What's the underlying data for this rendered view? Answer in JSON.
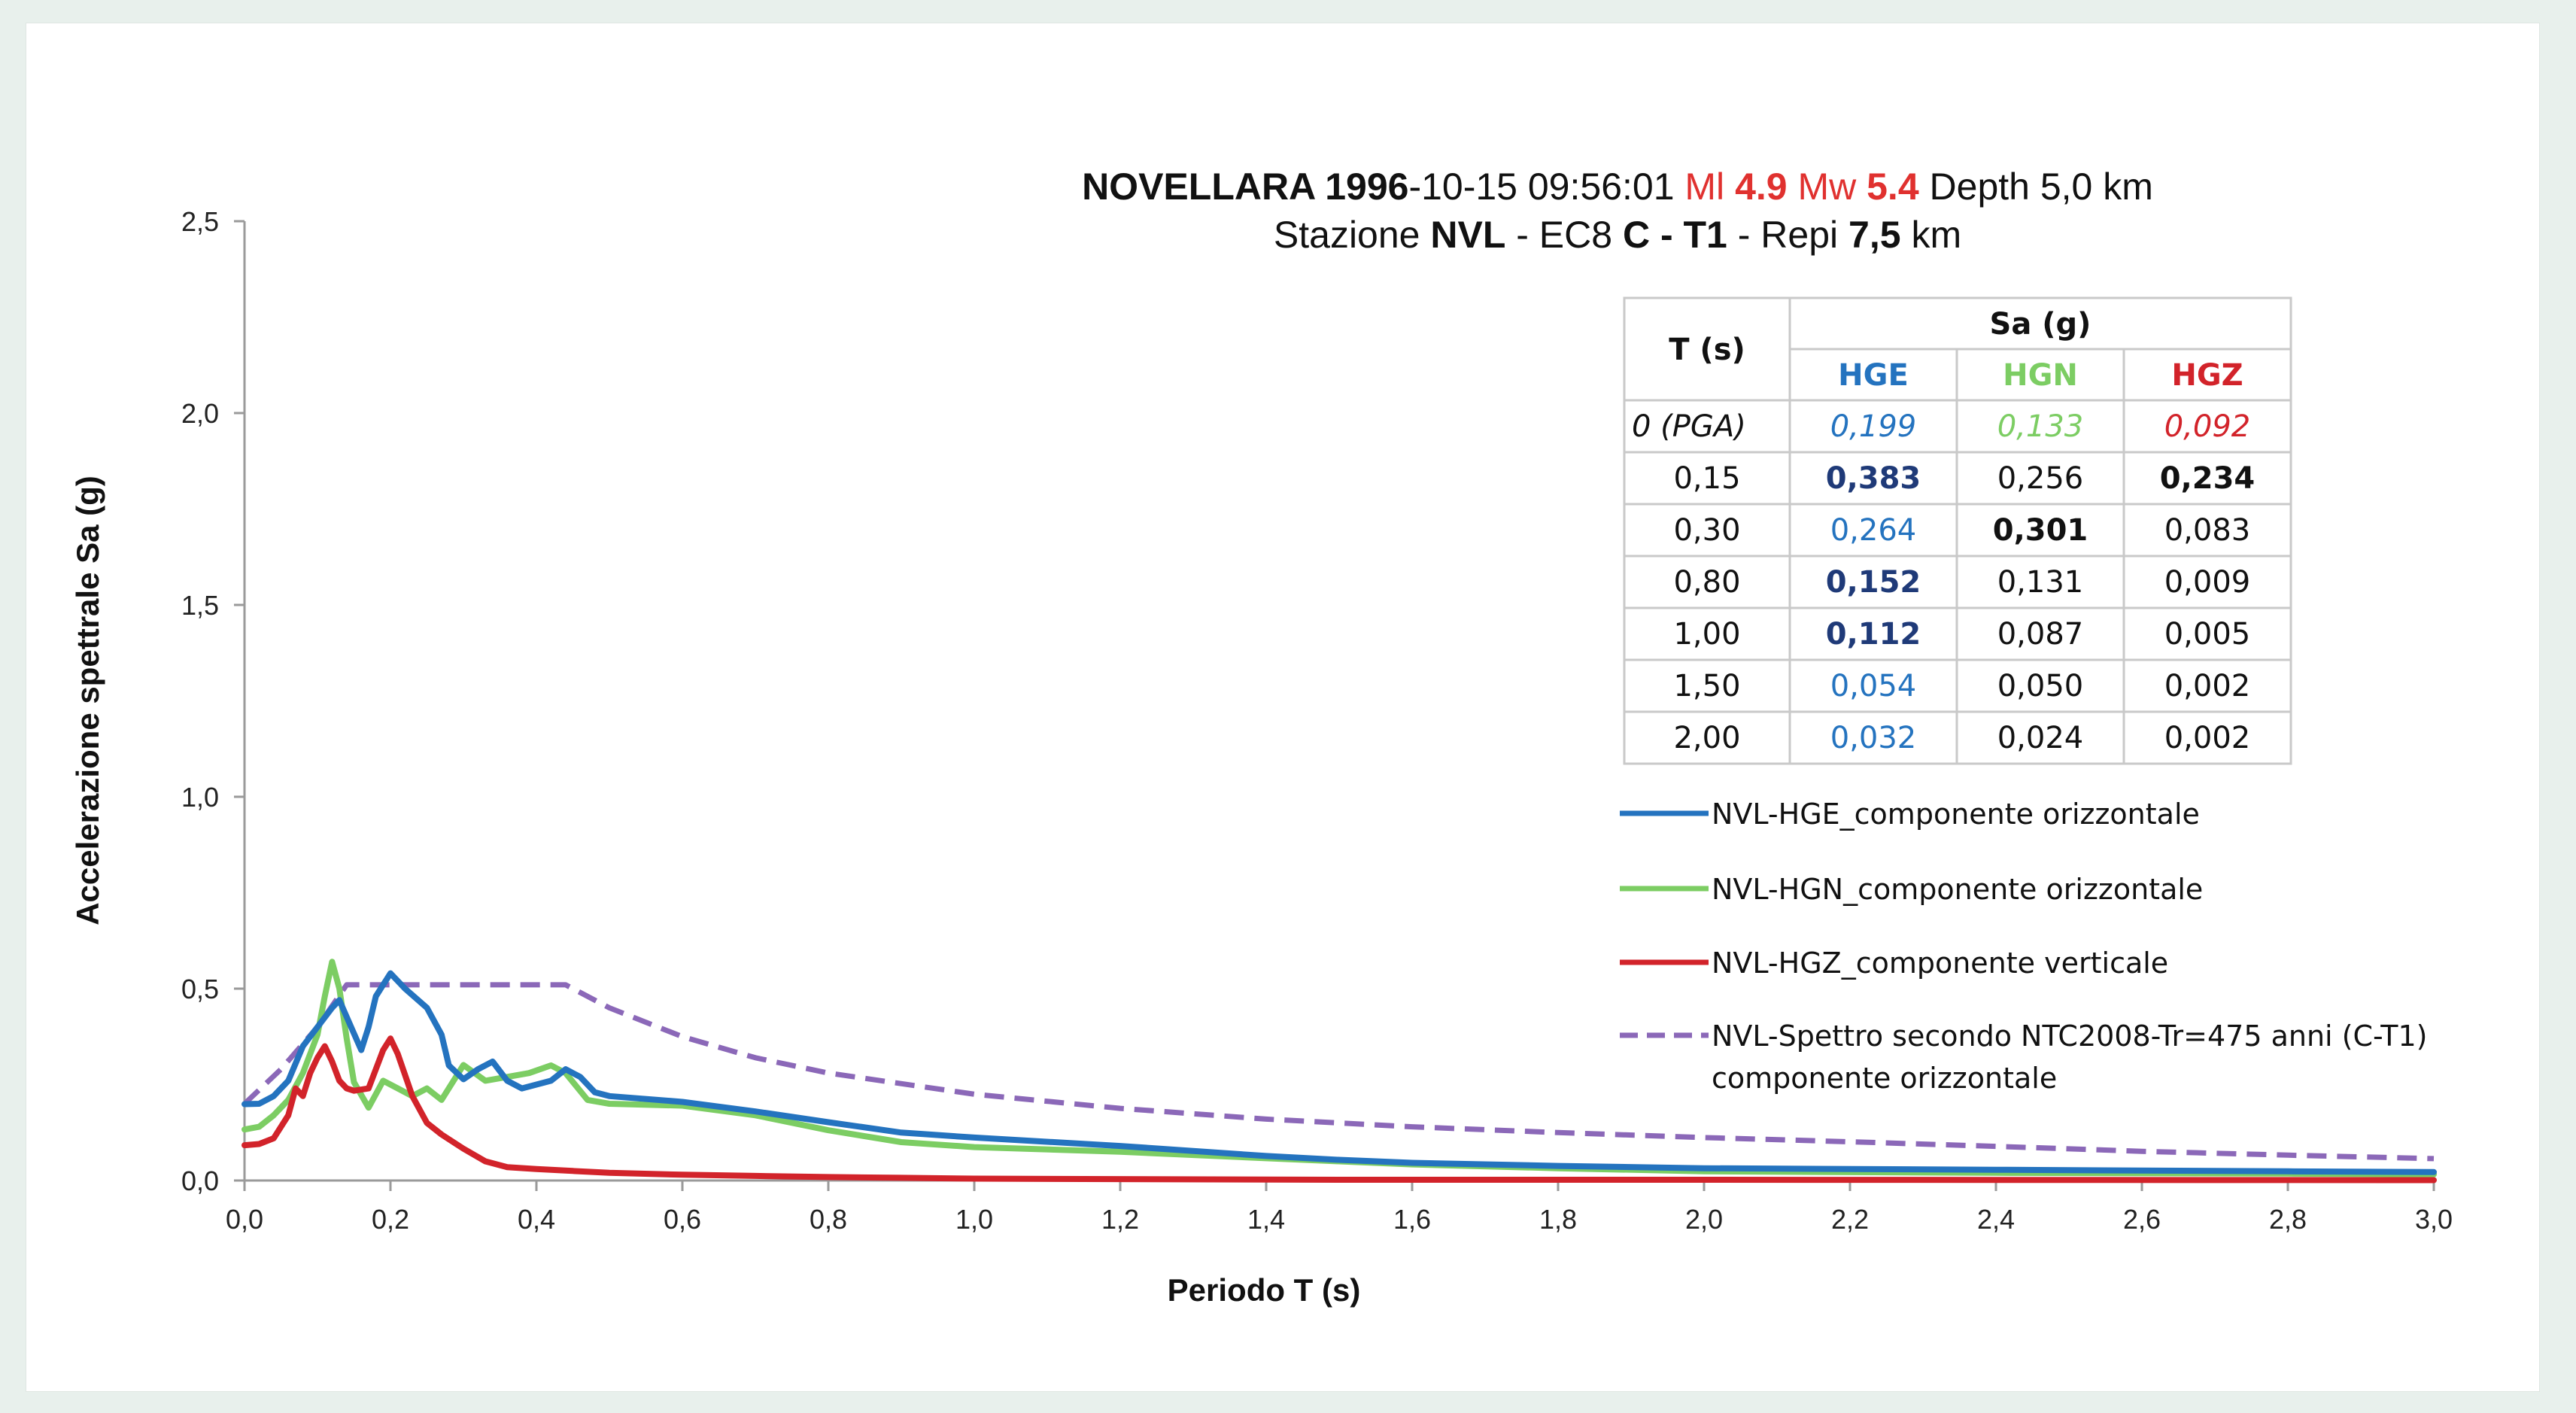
{
  "colors": {
    "HGE": "#2473bf",
    "HGN": "#7ccd63",
    "HGZ": "#d2232a",
    "spectrum": "#8b68b8",
    "highlight": "#1f3a78",
    "title_red": "#e0312f",
    "grid_border": "#c9c9c9",
    "axis": "#9a9a9a"
  },
  "chart_data": {
    "type": "line",
    "title": {
      "line1": [
        {
          "text": "NOVELLARA 1996",
          "bold": true,
          "color": "#111111"
        },
        {
          "text": "-10-15 09:56:01 ",
          "bold": false,
          "color": "#111111"
        },
        {
          "text": "Ml ",
          "bold": false,
          "color": "#e0312f"
        },
        {
          "text": "4.9",
          "bold": true,
          "color": "#e0312f"
        },
        {
          "text": " Mw ",
          "bold": false,
          "color": "#e0312f"
        },
        {
          "text": "5.4",
          "bold": true,
          "color": "#e0312f"
        },
        {
          "text": " Depth 5,0 km",
          "bold": false,
          "color": "#111111"
        }
      ],
      "line2": [
        {
          "text": "Stazione ",
          "bold": false
        },
        {
          "text": "NVL",
          "bold": true
        },
        {
          "text": " - EC8 ",
          "bold": false
        },
        {
          "text": "C - T1",
          "bold": true
        },
        {
          "text": " - Repi ",
          "bold": false
        },
        {
          "text": "7,5",
          "bold": true
        },
        {
          "text": " km",
          "bold": false
        }
      ]
    },
    "xlabel": "Periodo T (s)",
    "ylabel": "Accelerazione spettrale Sa (g)",
    "xlim": [
      0,
      3.0
    ],
    "ylim": [
      0,
      2.5
    ],
    "x_ticks": [
      "0,0",
      "0,2",
      "0,4",
      "0,6",
      "0,8",
      "1,0",
      "1,2",
      "1,4",
      "1,6",
      "1,8",
      "2,0",
      "2,2",
      "2,4",
      "2,6",
      "2,8",
      "3,0"
    ],
    "x_tick_values": [
      0,
      0.2,
      0.4,
      0.6,
      0.8,
      1.0,
      1.2,
      1.4,
      1.6,
      1.8,
      2.0,
      2.2,
      2.4,
      2.6,
      2.8,
      3.0
    ],
    "y_ticks": [
      "0,0",
      "0,5",
      "1,0",
      "1,5",
      "2,0",
      "2,5"
    ],
    "y_tick_values": [
      0,
      0.5,
      1.0,
      1.5,
      2.0,
      2.5
    ],
    "grid": false,
    "legend_position": "right",
    "series": [
      {
        "key": "HGE",
        "name": "NVL-HGE_componente orizzontale",
        "color_key": "HGE",
        "dashed": false,
        "points": [
          [
            0,
            0.199
          ],
          [
            0.02,
            0.2
          ],
          [
            0.04,
            0.22
          ],
          [
            0.06,
            0.26
          ],
          [
            0.08,
            0.35
          ],
          [
            0.1,
            0.4
          ],
          [
            0.12,
            0.45
          ],
          [
            0.13,
            0.47
          ],
          [
            0.15,
            0.383
          ],
          [
            0.16,
            0.34
          ],
          [
            0.17,
            0.4
          ],
          [
            0.18,
            0.48
          ],
          [
            0.2,
            0.54
          ],
          [
            0.22,
            0.5
          ],
          [
            0.25,
            0.45
          ],
          [
            0.27,
            0.38
          ],
          [
            0.28,
            0.3
          ],
          [
            0.3,
            0.264
          ],
          [
            0.32,
            0.29
          ],
          [
            0.34,
            0.31
          ],
          [
            0.36,
            0.26
          ],
          [
            0.38,
            0.24
          ],
          [
            0.4,
            0.25
          ],
          [
            0.42,
            0.26
          ],
          [
            0.44,
            0.29
          ],
          [
            0.46,
            0.27
          ],
          [
            0.48,
            0.23
          ],
          [
            0.5,
            0.22
          ],
          [
            0.6,
            0.205
          ],
          [
            0.7,
            0.18
          ],
          [
            0.8,
            0.152
          ],
          [
            0.9,
            0.125
          ],
          [
            1.0,
            0.112
          ],
          [
            1.2,
            0.09
          ],
          [
            1.4,
            0.064
          ],
          [
            1.5,
            0.054
          ],
          [
            1.6,
            0.046
          ],
          [
            1.8,
            0.038
          ],
          [
            2.0,
            0.032
          ],
          [
            2.4,
            0.028
          ],
          [
            2.8,
            0.024
          ],
          [
            3.0,
            0.022
          ]
        ]
      },
      {
        "key": "HGN",
        "name": "NVL-HGN_componente orizzontale",
        "color_key": "HGN",
        "dashed": false,
        "points": [
          [
            0,
            0.133
          ],
          [
            0.02,
            0.14
          ],
          [
            0.04,
            0.17
          ],
          [
            0.06,
            0.21
          ],
          [
            0.08,
            0.28
          ],
          [
            0.1,
            0.38
          ],
          [
            0.11,
            0.48
          ],
          [
            0.12,
            0.57
          ],
          [
            0.13,
            0.5
          ],
          [
            0.14,
            0.37
          ],
          [
            0.15,
            0.256
          ],
          [
            0.17,
            0.19
          ],
          [
            0.19,
            0.26
          ],
          [
            0.21,
            0.24
          ],
          [
            0.23,
            0.22
          ],
          [
            0.25,
            0.24
          ],
          [
            0.27,
            0.21
          ],
          [
            0.3,
            0.301
          ],
          [
            0.33,
            0.26
          ],
          [
            0.36,
            0.27
          ],
          [
            0.39,
            0.28
          ],
          [
            0.42,
            0.3
          ],
          [
            0.44,
            0.28
          ],
          [
            0.47,
            0.21
          ],
          [
            0.5,
            0.2
          ],
          [
            0.6,
            0.195
          ],
          [
            0.7,
            0.17
          ],
          [
            0.8,
            0.131
          ],
          [
            0.9,
            0.1
          ],
          [
            1.0,
            0.087
          ],
          [
            1.2,
            0.075
          ],
          [
            1.4,
            0.058
          ],
          [
            1.5,
            0.05
          ],
          [
            1.6,
            0.042
          ],
          [
            1.8,
            0.032
          ],
          [
            2.0,
            0.024
          ],
          [
            2.4,
            0.02
          ],
          [
            2.8,
            0.018
          ],
          [
            3.0,
            0.016
          ]
        ]
      },
      {
        "key": "HGZ",
        "name": "NVL-HGZ_componente verticale",
        "color_key": "HGZ",
        "dashed": false,
        "points": [
          [
            0,
            0.092
          ],
          [
            0.02,
            0.095
          ],
          [
            0.04,
            0.11
          ],
          [
            0.06,
            0.17
          ],
          [
            0.07,
            0.24
          ],
          [
            0.08,
            0.22
          ],
          [
            0.09,
            0.28
          ],
          [
            0.1,
            0.32
          ],
          [
            0.11,
            0.35
          ],
          [
            0.12,
            0.31
          ],
          [
            0.13,
            0.26
          ],
          [
            0.14,
            0.24
          ],
          [
            0.15,
            0.234
          ],
          [
            0.17,
            0.24
          ],
          [
            0.19,
            0.34
          ],
          [
            0.2,
            0.37
          ],
          [
            0.21,
            0.33
          ],
          [
            0.23,
            0.22
          ],
          [
            0.25,
            0.15
          ],
          [
            0.27,
            0.12
          ],
          [
            0.3,
            0.083
          ],
          [
            0.33,
            0.05
          ],
          [
            0.36,
            0.035
          ],
          [
            0.4,
            0.03
          ],
          [
            0.45,
            0.025
          ],
          [
            0.5,
            0.02
          ],
          [
            0.6,
            0.015
          ],
          [
            0.7,
            0.012
          ],
          [
            0.8,
            0.009
          ],
          [
            0.9,
            0.007
          ],
          [
            1.0,
            0.005
          ],
          [
            1.5,
            0.002
          ],
          [
            2.0,
            0.002
          ],
          [
            3.0,
            0.001
          ]
        ]
      },
      {
        "key": "NTC",
        "name": "NVL-Spettro secondo NTC2008-Tr=475 anni (C-T1)",
        "name_line2": "componente orizzontale",
        "color_key": "spectrum",
        "dashed": true,
        "points": [
          [
            0,
            0.2
          ],
          [
            0.05,
            0.29
          ],
          [
            0.1,
            0.4
          ],
          [
            0.14,
            0.51
          ],
          [
            0.2,
            0.51
          ],
          [
            0.3,
            0.51
          ],
          [
            0.44,
            0.51
          ],
          [
            0.5,
            0.45
          ],
          [
            0.6,
            0.375
          ],
          [
            0.7,
            0.32
          ],
          [
            0.8,
            0.28
          ],
          [
            1.0,
            0.225
          ],
          [
            1.2,
            0.188
          ],
          [
            1.4,
            0.16
          ],
          [
            1.6,
            0.14
          ],
          [
            1.8,
            0.125
          ],
          [
            2.0,
            0.112
          ],
          [
            2.2,
            0.101
          ],
          [
            2.4,
            0.089
          ],
          [
            2.6,
            0.076
          ],
          [
            2.8,
            0.066
          ],
          [
            3.0,
            0.057
          ]
        ]
      }
    ]
  },
  "table": {
    "header_t": "T (s)",
    "header_sa": "Sa (g)",
    "columns": [
      "HGE",
      "HGN",
      "HGZ"
    ],
    "rows": [
      {
        "t": "0 (PGA)",
        "italic": true,
        "values": [
          "0,199",
          "0,133",
          "0,092"
        ],
        "bold": [
          false,
          false,
          false
        ],
        "colored": true
      },
      {
        "t": "0,15",
        "italic": false,
        "values": [
          "0,383",
          "0,256",
          "0,234"
        ],
        "bold": [
          true,
          false,
          true
        ],
        "colored": false
      },
      {
        "t": "0,30",
        "italic": false,
        "values": [
          "0,264",
          "0,301",
          "0,083"
        ],
        "bold": [
          false,
          true,
          false
        ],
        "colored": false
      },
      {
        "t": "0,80",
        "italic": false,
        "values": [
          "0,152",
          "0,131",
          "0,009"
        ],
        "bold": [
          true,
          false,
          false
        ],
        "colored": false
      },
      {
        "t": "1,00",
        "italic": false,
        "values": [
          "0,112",
          "0,087",
          "0,005"
        ],
        "bold": [
          true,
          false,
          false
        ],
        "colored": false
      },
      {
        "t": "1,50",
        "italic": false,
        "values": [
          "0,054",
          "0,050",
          "0,002"
        ],
        "bold": [
          false,
          false,
          false
        ],
        "colored": false
      },
      {
        "t": "2,00",
        "italic": false,
        "values": [
          "0,032",
          "0,024",
          "0,002"
        ],
        "bold": [
          false,
          false,
          false
        ],
        "colored": false
      }
    ]
  }
}
